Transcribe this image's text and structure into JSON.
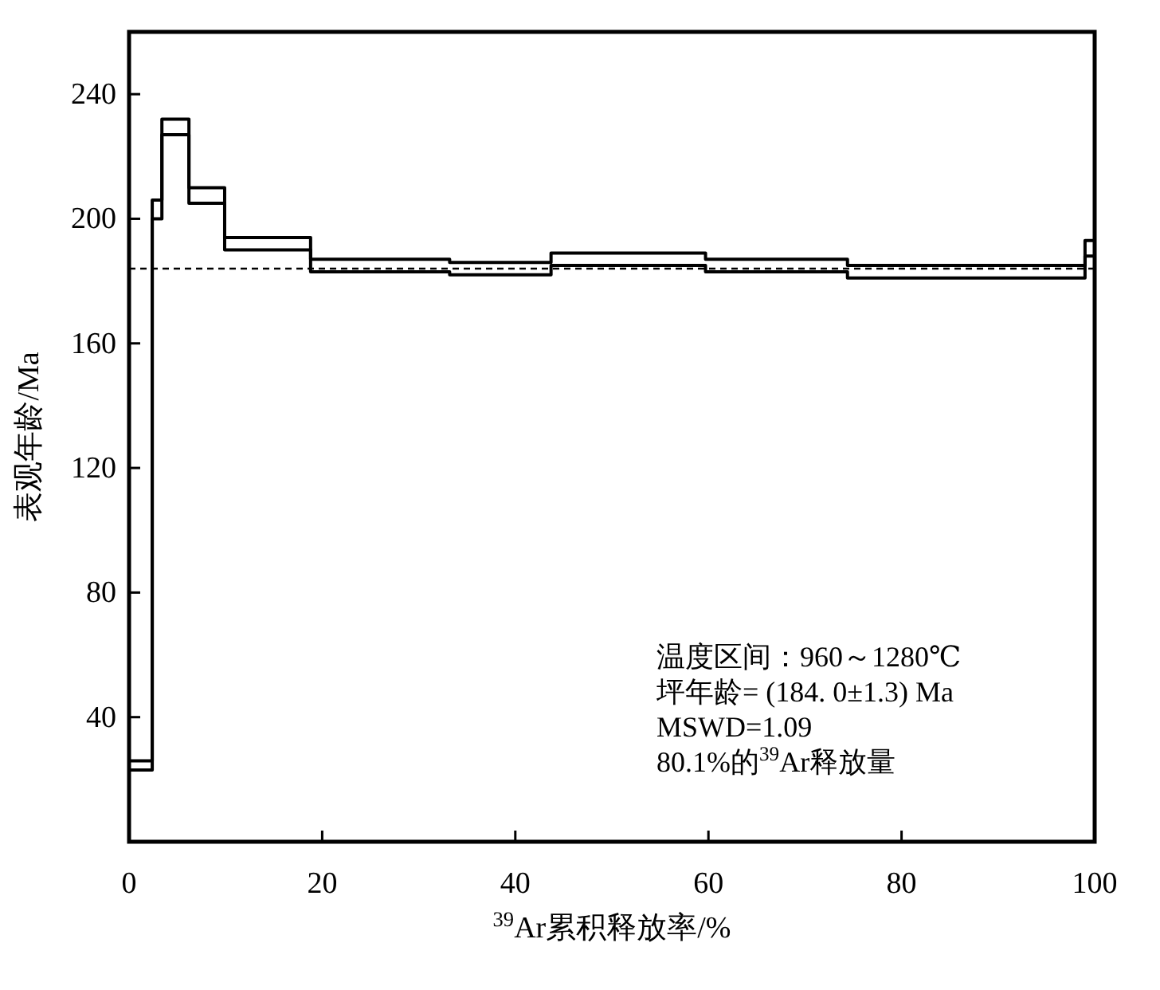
{
  "chart_data": {
    "type": "step",
    "xlabel": "$^{39}$Ar累积释放率/%",
    "ylabel": "表观年龄/Ma",
    "xlim": [
      0,
      100
    ],
    "ylim": [
      0,
      260
    ],
    "xticks": [
      0,
      20,
      40,
      60,
      80,
      100
    ],
    "yticks": [
      40,
      80,
      120,
      160,
      200,
      240
    ],
    "series": [
      {
        "color": "#000000",
        "line_style": "solid",
        "x": [
          0,
          2.4,
          3.4,
          6.2,
          9.9,
          18.8,
          33.2,
          43.7,
          52.4,
          59.7,
          74.4,
          92.0,
          99.0,
          100
        ],
        "values": [
          26,
          206,
          232,
          210,
          194,
          187,
          186,
          189,
          189,
          187,
          185,
          185,
          193,
          193
        ]
      },
      {
        "color": "#000000",
        "line_style": "solid",
        "x": [
          0,
          2.4,
          3.4,
          6.2,
          9.9,
          18.8,
          33.2,
          43.7,
          52.4,
          59.7,
          74.4,
          92.0,
          99.0,
          100
        ],
        "values": [
          23,
          200,
          227,
          205,
          190,
          183,
          182,
          185,
          185,
          183,
          181,
          181,
          188,
          188
        ]
      }
    ],
    "ref_lines": [
      {
        "axis": "y",
        "value": 184,
        "color": "#000000",
        "line_style": "dashed"
      }
    ],
    "annotations": [
      "温度区间：960～1280℃",
      "坪年龄= (184. 0±1.3) Ma",
      "MSWD=1.09",
      "80.1%的$^{39}$Ar释放量"
    ],
    "grid": false
  }
}
